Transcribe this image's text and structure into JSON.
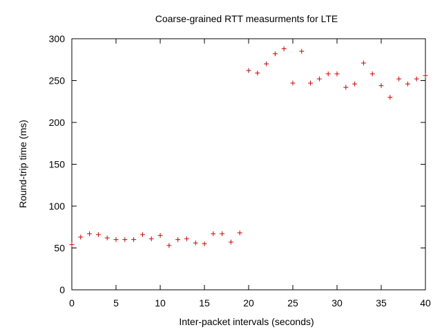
{
  "chart_data": {
    "type": "scatter",
    "title": "Coarse-grained RTT measurments for LTE",
    "xlabel": "Inter-packet intervals (seconds)",
    "ylabel": "Round-trip time (ms)",
    "xlim": [
      0,
      40
    ],
    "ylim": [
      0,
      300
    ],
    "x_ticks": [
      0,
      5,
      10,
      15,
      20,
      25,
      30,
      35,
      40
    ],
    "y_ticks": [
      0,
      50,
      100,
      150,
      200,
      250,
      300
    ],
    "grid": false,
    "marker": "plus",
    "color": "#cc0000",
    "series": [
      {
        "x": [
          0,
          1,
          2,
          3,
          4,
          5,
          6,
          7,
          8,
          9,
          10,
          11,
          12,
          13,
          14,
          15,
          16,
          17,
          18,
          19,
          20,
          21,
          22,
          23,
          24,
          25,
          26,
          27,
          28,
          29,
          30,
          31,
          32,
          33,
          34,
          35,
          36,
          37,
          38,
          39,
          40
        ],
        "y": [
          54,
          63,
          67,
          66,
          62,
          60,
          60,
          60,
          66,
          61,
          65,
          53,
          60,
          61,
          56,
          55,
          67,
          67,
          57,
          68,
          262,
          259,
          270,
          282,
          288,
          247,
          285,
          247,
          252,
          258,
          258,
          242,
          246,
          271,
          258,
          244,
          230,
          252,
          246,
          252,
          256
        ]
      }
    ]
  }
}
